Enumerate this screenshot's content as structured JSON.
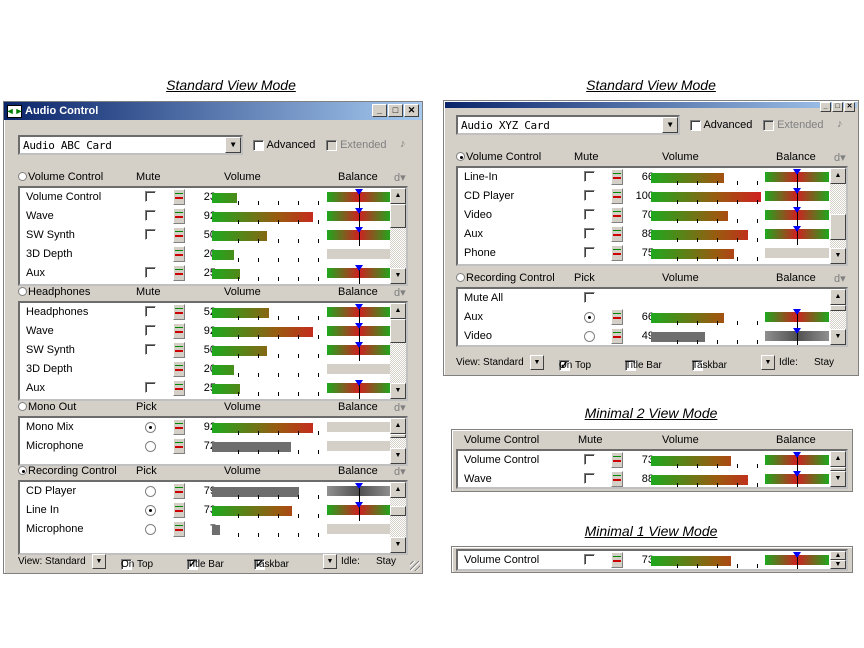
{
  "captions": {
    "std1": "Standard View Mode",
    "std2": "Standard View Mode",
    "min2": "Minimal 2 View Mode",
    "min1": "Minimal 1 View Mode"
  },
  "colors": {
    "title_bar": "#0a246a",
    "green": "#1ea81e",
    "red": "#d02020",
    "gray_bar": "#707070",
    "window": "#d4d0c8"
  },
  "w1": {
    "title": "Audio Control",
    "device": "Audio ABC Card",
    "advanced": "Advanced",
    "extended": "Extended",
    "sections": [
      {
        "name": "Volume Control",
        "col2": "Mute",
        "col3": "Volume",
        "col4": "Balance",
        "active": false,
        "rows": [
          {
            "name": "Volume Control",
            "value": 23,
            "checked": false,
            "balance": "color"
          },
          {
            "name": "Wave",
            "value": 92,
            "checked": false,
            "balance": "color"
          },
          {
            "name": "SW Synth",
            "value": 50,
            "checked": false,
            "balance": "color"
          },
          {
            "name": "3D Depth",
            "value": 20,
            "checked": null,
            "balance": "gray"
          },
          {
            "name": "Aux",
            "value": 25,
            "checked": false,
            "balance": "color"
          }
        ]
      },
      {
        "name": "Headphones",
        "col2": "Mute",
        "col3": "Volume",
        "col4": "Balance",
        "active": false,
        "rows": [
          {
            "name": "Headphones",
            "value": 52,
            "checked": false,
            "balance": "color"
          },
          {
            "name": "Wave",
            "value": 92,
            "checked": false,
            "balance": "color"
          },
          {
            "name": "SW Synth",
            "value": 50,
            "checked": false,
            "balance": "color"
          },
          {
            "name": "3D Depth",
            "value": 20,
            "checked": null,
            "balance": "gray"
          },
          {
            "name": "Aux",
            "value": 25,
            "checked": false,
            "balance": "color"
          }
        ]
      },
      {
        "name": "Mono Out",
        "col2": "Pick",
        "col3": "Volume",
        "col4": "Balance",
        "active": false,
        "rows": [
          {
            "name": "Mono Mix",
            "value": 92,
            "radio": true,
            "balance": "gray"
          },
          {
            "name": "Microphone",
            "value": 72,
            "radio": false,
            "bar": "gray",
            "balance": "gray"
          }
        ]
      },
      {
        "name": "Recording Control",
        "col2": "Pick",
        "col3": "Volume",
        "col4": "Balance",
        "active": true,
        "rows": [
          {
            "name": "CD Player",
            "value": 79,
            "radio": false,
            "bar": "gray",
            "balance": "dark"
          },
          {
            "name": "Line In",
            "value": 73,
            "radio": true,
            "balance": "color"
          },
          {
            "name": "Microphone",
            "value": 7,
            "radio": false,
            "bar": "gray",
            "balance": "gray"
          }
        ]
      }
    ],
    "status": {
      "view": "View: Standard",
      "ontop": "On Top",
      "titlebar": "Title Bar",
      "taskbar": "Taskbar",
      "idle": "Idle:",
      "stay": "Stay"
    }
  },
  "w2": {
    "device": "Audio XYZ Card",
    "advanced": "Advanced",
    "extended": "Extended",
    "sections": [
      {
        "name": "Volume Control",
        "col2": "Mute",
        "col3": "Volume",
        "col4": "Balance",
        "active": true,
        "rows": [
          {
            "name": "Line-In",
            "value": 66,
            "checked": false,
            "balance": "color"
          },
          {
            "name": "CD Player",
            "value": 100,
            "checked": false,
            "balance": "color"
          },
          {
            "name": "Video",
            "value": 70,
            "checked": false,
            "balance": "color"
          },
          {
            "name": "Aux",
            "value": 88,
            "checked": false,
            "balance": "color"
          },
          {
            "name": "Phone",
            "value": 75,
            "checked": false,
            "balance": "gray"
          }
        ]
      },
      {
        "name": "Recording Control",
        "col2": "Pick",
        "col3": "Volume",
        "col4": "Balance",
        "active": false,
        "rows": [
          {
            "name": "Mute All",
            "checked": false,
            "noslider": true
          },
          {
            "name": "Aux",
            "value": 66,
            "radio": true,
            "balance": "color"
          },
          {
            "name": "Video",
            "value": 49,
            "radio": false,
            "bar": "gray",
            "balance": "dark"
          }
        ]
      }
    ],
    "status": {
      "view": "View: Standard",
      "ontop": "On Top",
      "titlebar": "Title Bar",
      "taskbar": "Taskbar",
      "idle": "Idle:",
      "stay": "Stay"
    }
  },
  "w3": {
    "header": {
      "name": "Volume Control",
      "col2": "Mute",
      "col3": "Volume",
      "col4": "Balance"
    },
    "rows": [
      {
        "name": "Volume Control",
        "value": 73,
        "checked": false,
        "balance": "color"
      },
      {
        "name": "Wave",
        "value": 88,
        "checked": false,
        "balance": "color"
      }
    ]
  },
  "w4": {
    "rows": [
      {
        "name": "Volume Control",
        "value": 73,
        "checked": false,
        "balance": "color"
      }
    ]
  }
}
